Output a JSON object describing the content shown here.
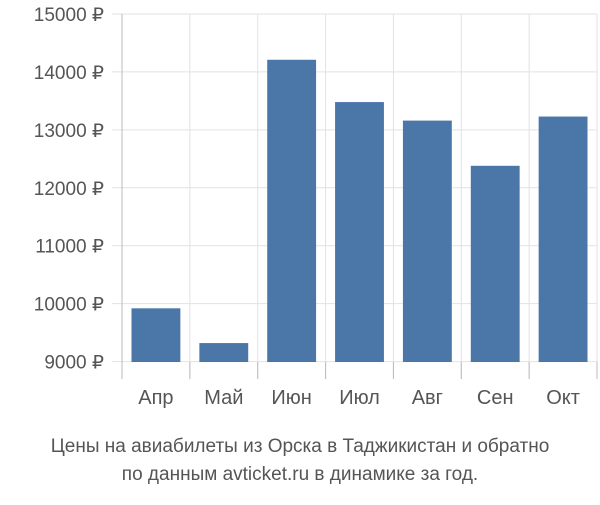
{
  "chart_data": {
    "type": "bar",
    "categories": [
      "Апр",
      "Май",
      "Июн",
      "Июл",
      "Авг",
      "Сен",
      "Окт"
    ],
    "values": [
      9920,
      9320,
      14210,
      13480,
      13160,
      12380,
      13230
    ],
    "y_ticks": [
      9000,
      10000,
      11000,
      12000,
      13000,
      14000,
      15000
    ],
    "y_tick_labels": [
      "9000 ₽",
      "10000 ₽",
      "11000 ₽",
      "12000 ₽",
      "13000 ₽",
      "14000 ₽",
      "15000 ₽"
    ],
    "ylim": [
      8700,
      15000
    ],
    "grid": true,
    "bar_color": "#4a76a8",
    "grid_color": "#e2e2e2",
    "axis_color": "#bbbbbb",
    "label_color": "#555555"
  },
  "caption": {
    "line1": "Цены на авиабилеты из Орска в Таджикистан и обратно",
    "line2": "по данным avticket.ru в динамике за год."
  }
}
